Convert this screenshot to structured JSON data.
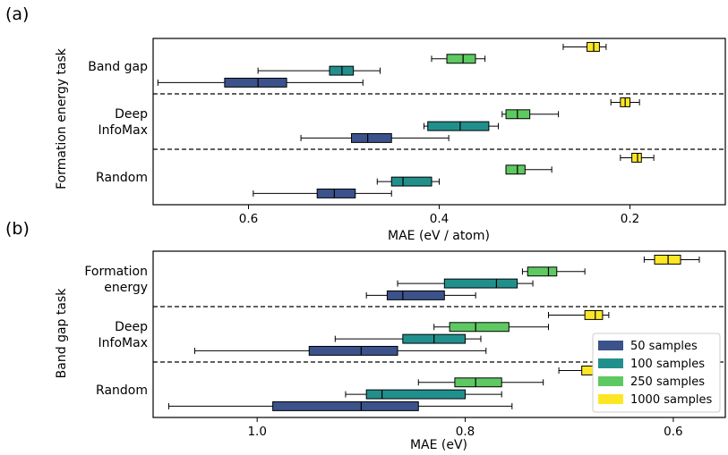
{
  "legend": [
    {
      "name": "50 samples",
      "color": "#3b528b"
    },
    {
      "name": "100 samples",
      "color": "#21908d"
    },
    {
      "name": "250 samples",
      "color": "#5ec962"
    },
    {
      "name": "1000 samples",
      "color": "#fde725"
    }
  ],
  "chart_data": [
    {
      "type": "boxplot",
      "panel_label": "(a)",
      "xlabel": "MAE (eV / atom)",
      "ylabel": "Formation energy task",
      "xlim": [
        0.7,
        0.1
      ],
      "x_inverted": true,
      "xticks": [
        0.6,
        0.4,
        0.2
      ],
      "tick_labels": [
        "0.6",
        "0.4",
        "0.2"
      ],
      "categories": [
        "Band gap",
        "Deep\nInfoMax",
        "Random"
      ],
      "series": [
        {
          "name": "50 samples",
          "boxes": [
            {
              "whislo": 0.48,
              "q1": 0.56,
              "med": 0.59,
              "q3": 0.625,
              "whishi": 0.695
            },
            {
              "whislo": 0.39,
              "q1": 0.45,
              "med": 0.475,
              "q3": 0.492,
              "whishi": 0.545
            },
            {
              "whislo": 0.45,
              "q1": 0.488,
              "med": 0.51,
              "q3": 0.528,
              "whishi": 0.595
            }
          ]
        },
        {
          "name": "100 samples",
          "boxes": [
            {
              "whislo": 0.462,
              "q1": 0.49,
              "med": 0.502,
              "q3": 0.515,
              "whishi": 0.59
            },
            {
              "whislo": 0.338,
              "q1": 0.348,
              "med": 0.378,
              "q3": 0.412,
              "whishi": 0.416
            },
            {
              "whislo": 0.4,
              "q1": 0.408,
              "med": 0.438,
              "q3": 0.45,
              "whishi": 0.465
            }
          ]
        },
        {
          "name": "250 samples",
          "boxes": [
            {
              "whislo": 0.352,
              "q1": 0.362,
              "med": 0.375,
              "q3": 0.392,
              "whishi": 0.408
            },
            {
              "whislo": 0.275,
              "q1": 0.305,
              "med": 0.318,
              "q3": 0.33,
              "whishi": 0.334
            },
            {
              "whislo": 0.282,
              "q1": 0.31,
              "med": 0.318,
              "q3": 0.33,
              "whishi": 0.33
            }
          ]
        },
        {
          "name": "1000 samples",
          "boxes": [
            {
              "whislo": 0.225,
              "q1": 0.232,
              "med": 0.238,
              "q3": 0.245,
              "whishi": 0.27
            },
            {
              "whislo": 0.19,
              "q1": 0.2,
              "med": 0.205,
              "q3": 0.21,
              "whishi": 0.22
            },
            {
              "whislo": 0.175,
              "q1": 0.188,
              "med": 0.192,
              "q3": 0.198,
              "whishi": 0.21
            }
          ]
        }
      ]
    },
    {
      "type": "boxplot",
      "panel_label": "(b)",
      "xlabel": "MAE (eV)",
      "ylabel": "Band gap task",
      "xlim": [
        1.1,
        0.55
      ],
      "x_inverted": true,
      "xticks": [
        1.0,
        0.8,
        0.6
      ],
      "tick_labels": [
        "1.0",
        "0.8",
        "0.6"
      ],
      "categories": [
        "Formation\nenergy",
        "Deep\nInfoMax",
        "Random"
      ],
      "series": [
        {
          "name": "50 samples",
          "boxes": [
            {
              "whislo": 0.79,
              "q1": 0.82,
              "med": 0.86,
              "q3": 0.875,
              "whishi": 0.895
            },
            {
              "whislo": 0.78,
              "q1": 0.865,
              "med": 0.9,
              "q3": 0.95,
              "whishi": 1.06
            },
            {
              "whislo": 0.755,
              "q1": 0.845,
              "med": 0.9,
              "q3": 0.985,
              "whishi": 1.085
            }
          ]
        },
        {
          "name": "100 samples",
          "boxes": [
            {
              "whislo": 0.735,
              "q1": 0.75,
              "med": 0.77,
              "q3": 0.82,
              "whishi": 0.865
            },
            {
              "whislo": 0.785,
              "q1": 0.8,
              "med": 0.83,
              "q3": 0.86,
              "whishi": 0.925
            },
            {
              "whislo": 0.765,
              "q1": 0.8,
              "med": 0.88,
              "q3": 0.895,
              "whishi": 0.915
            }
          ]
        },
        {
          "name": "250 samples",
          "boxes": [
            {
              "whislo": 0.685,
              "q1": 0.712,
              "med": 0.72,
              "q3": 0.74,
              "whishi": 0.745
            },
            {
              "whislo": 0.72,
              "q1": 0.758,
              "med": 0.79,
              "q3": 0.815,
              "whishi": 0.83
            },
            {
              "whislo": 0.725,
              "q1": 0.765,
              "med": 0.79,
              "q3": 0.81,
              "whishi": 0.845
            }
          ]
        },
        {
          "name": "1000 samples",
          "boxes": [
            {
              "whislo": 0.575,
              "q1": 0.593,
              "med": 0.605,
              "q3": 0.618,
              "whishi": 0.628
            },
            {
              "whislo": 0.662,
              "q1": 0.668,
              "med": 0.675,
              "q3": 0.685,
              "whishi": 0.72
            },
            {
              "whislo": 0.645,
              "q1": 0.658,
              "med": 0.675,
              "q3": 0.688,
              "whishi": 0.71
            }
          ]
        }
      ]
    }
  ]
}
